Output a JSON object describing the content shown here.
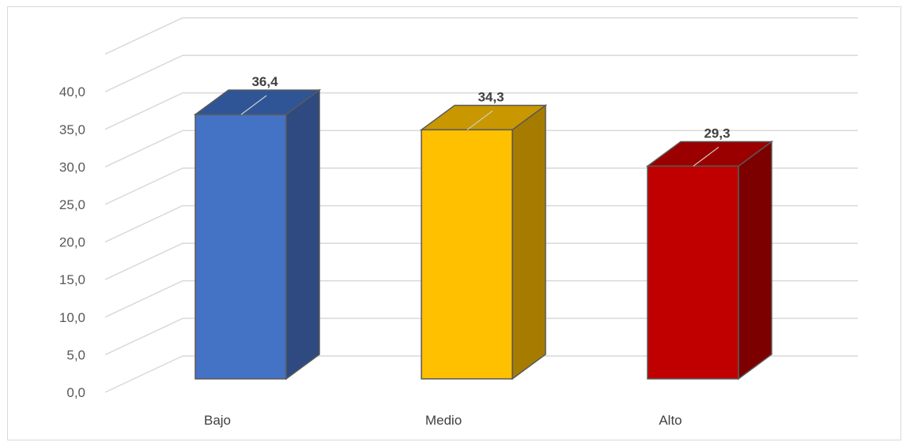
{
  "chart_data": {
    "type": "bar",
    "style": "3d-column",
    "categories": [
      "Bajo",
      "Medio",
      "Alto"
    ],
    "values": [
      36.4,
      34.3,
      29.3
    ],
    "value_labels": [
      "36,4",
      "34,3",
      "29,3"
    ],
    "colors": [
      "#4472c4",
      "#ffc000",
      "#c00000"
    ],
    "side_colors": [
      "#2e4a80",
      "#a67c00",
      "#7d0000"
    ],
    "top_colors": [
      "#2f5597",
      "#c99700",
      "#9a0000"
    ],
    "yticks": [
      0,
      5,
      10,
      15,
      20,
      25,
      30,
      35,
      40
    ],
    "ytick_labels": [
      "0,0",
      "5,0",
      "10,0",
      "15,0",
      "20,0",
      "25,0",
      "30,0",
      "35,0",
      "40,0"
    ],
    "ylim": [
      0,
      40
    ],
    "grid": true,
    "legend": "none",
    "title": "",
    "xlabel": "",
    "ylabel": ""
  }
}
